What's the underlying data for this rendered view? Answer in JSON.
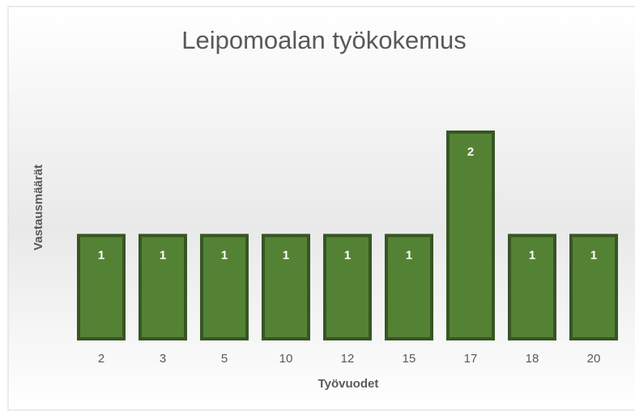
{
  "chart_data": {
    "type": "bar",
    "title": "Leipomoalan työkokemus",
    "x_label": "Työvuodet",
    "y_label": "Vastausmäärät",
    "categories": [
      "2",
      "3",
      "5",
      "10",
      "12",
      "15",
      "17",
      "18",
      "20"
    ],
    "values": [
      1,
      1,
      1,
      1,
      1,
      1,
      2,
      1,
      1
    ],
    "color": "#548235",
    "edge_color": "#375623",
    "grid": false
  }
}
